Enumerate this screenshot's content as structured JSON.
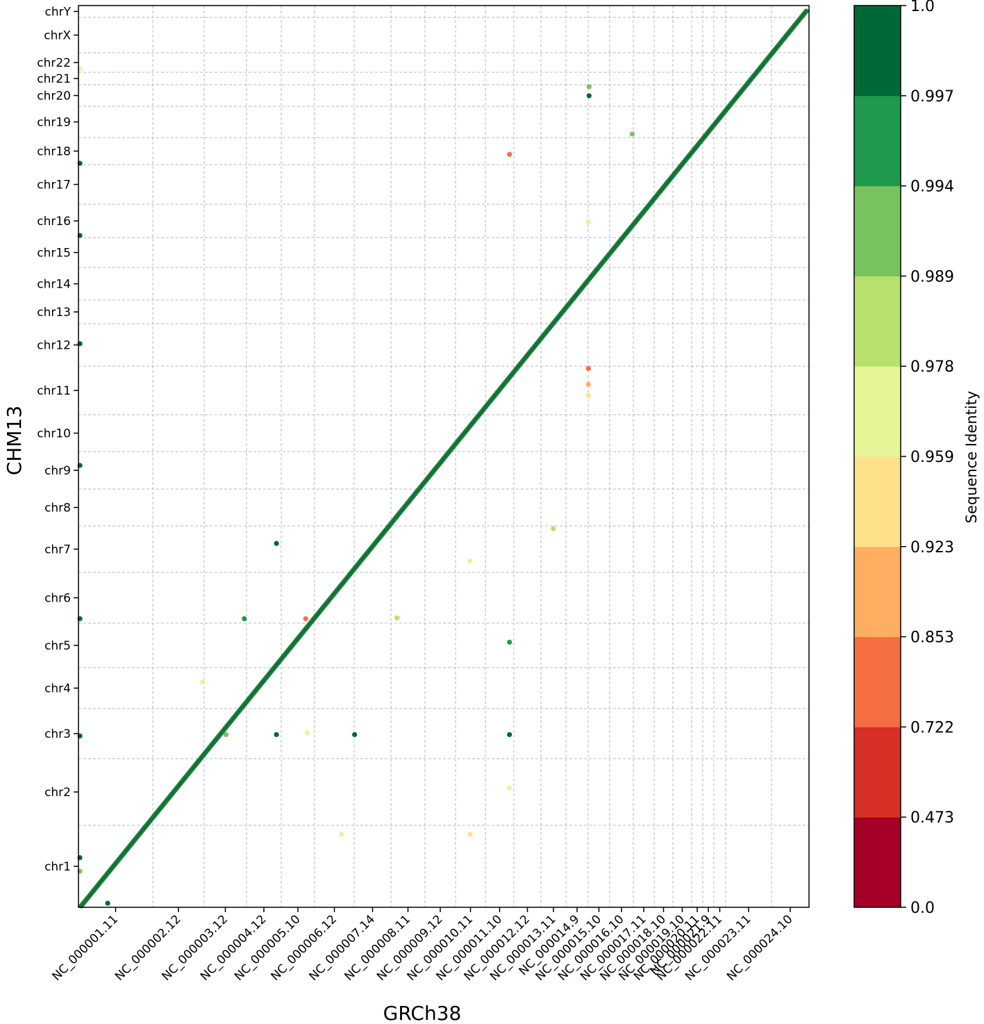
{
  "chart_data": {
    "type": "scatter",
    "xlabel": "GRCh38",
    "ylabel": "CHM13",
    "colorbar_label": "Sequence Identity",
    "grid": true,
    "x_ticks": [
      "NC_000001.11",
      "NC_000002.12",
      "NC_000003.12",
      "NC_000004.12",
      "NC_000005.10",
      "NC_000006.12",
      "NC_000007.14",
      "NC_000008.11",
      "NC_000009.12",
      "NC_000010.11",
      "NC_000011.10",
      "NC_000012.12",
      "NC_000013.11",
      "NC_000014.9",
      "NC_000015.10",
      "NC_000016.10",
      "NC_000017.11",
      "NC_000018.10",
      "NC_000019.10",
      "NC_000020.11",
      "NC_000021.9",
      "NC_000022.11",
      "NC_000023.11",
      "NC_000024.10"
    ],
    "y_ticks": [
      "chr1",
      "chr2",
      "chr3",
      "chr4",
      "chr5",
      "chr6",
      "chr7",
      "chr8",
      "chr9",
      "chr10",
      "chr11",
      "chr12",
      "chr13",
      "chr14",
      "chr15",
      "chr16",
      "chr17",
      "chr18",
      "chr19",
      "chr20",
      "chr21",
      "chr22",
      "chrX",
      "chrY"
    ],
    "colorbar_ticks": [
      "0.0",
      "0.473",
      "0.722",
      "0.853",
      "0.923",
      "0.959",
      "0.978",
      "0.989",
      "0.994",
      "0.997",
      "1.0"
    ],
    "colors": {
      "diagonal": "#1a7f3c",
      "bins": [
        "#a50026",
        "#d73027",
        "#f46d43",
        "#fdae61",
        "#fee08b",
        "#e6f598",
        "#b8e06d",
        "#78c35e",
        "#1e9a4e",
        "#006837"
      ]
    },
    "off_diagonal_points": [
      {
        "x": 0.2,
        "y": 186.0,
        "identity": 0.97
      },
      {
        "x": 0.2,
        "y": 165.0,
        "identity": 0.999
      },
      {
        "x": 0.2,
        "y": 149.0,
        "identity": 0.998
      },
      {
        "x": 0.2,
        "y": 125.0,
        "identity": 0.998
      },
      {
        "x": 0.2,
        "y": 98.0,
        "identity": 0.998
      },
      {
        "x": 0.2,
        "y": 64.0,
        "identity": 0.998
      },
      {
        "x": 0.2,
        "y": 38.0,
        "identity": 0.998
      },
      {
        "x": 0.2,
        "y": 11.0,
        "identity": 0.999
      },
      {
        "x": 0.2,
        "y": 8.0,
        "identity": 0.99
      },
      {
        "x": 4.0,
        "y": 0.9,
        "identity": 0.998
      },
      {
        "x": 17.0,
        "y": 50.0,
        "identity": 0.96
      },
      {
        "x": 20.2,
        "y": 38.3,
        "identity": 0.992
      },
      {
        "x": 22.7,
        "y": 64.0,
        "identity": 0.996
      },
      {
        "x": 27.1,
        "y": 80.7,
        "identity": 0.999
      },
      {
        "x": 27.1,
        "y": 38.3,
        "identity": 0.999
      },
      {
        "x": 31.1,
        "y": 64.0,
        "identity": 0.8
      },
      {
        "x": 31.3,
        "y": 38.7,
        "identity": 0.97
      },
      {
        "x": 36.0,
        "y": 16.2,
        "identity": 0.97
      },
      {
        "x": 37.8,
        "y": 38.3,
        "identity": 0.999
      },
      {
        "x": 43.6,
        "y": 64.2,
        "identity": 0.985
      },
      {
        "x": 53.6,
        "y": 16.2,
        "identity": 0.94
      },
      {
        "x": 53.6,
        "y": 76.8,
        "identity": 0.97
      },
      {
        "x": 59.0,
        "y": 167.0,
        "identity": 0.85
      },
      {
        "x": 59.0,
        "y": 58.8,
        "identity": 0.996
      },
      {
        "x": 59.0,
        "y": 38.3,
        "identity": 0.999
      },
      {
        "x": 59.0,
        "y": 26.5,
        "identity": 0.97
      },
      {
        "x": 65.0,
        "y": 84.0,
        "identity": 0.985
      },
      {
        "x": 69.8,
        "y": 152.0,
        "identity": 0.97
      },
      {
        "x": 69.8,
        "y": 119.5,
        "identity": 0.8
      },
      {
        "x": 69.8,
        "y": 116.0,
        "identity": 0.9
      },
      {
        "x": 69.8,
        "y": 113.5,
        "identity": 0.93
      },
      {
        "x": 75.8,
        "y": 171.5,
        "identity": 0.992
      },
      {
        "x": 69.9,
        "y": 182.0,
        "identity": 0.993
      },
      {
        "x": 69.9,
        "y": 180.0,
        "identity": 0.999
      }
    ]
  }
}
